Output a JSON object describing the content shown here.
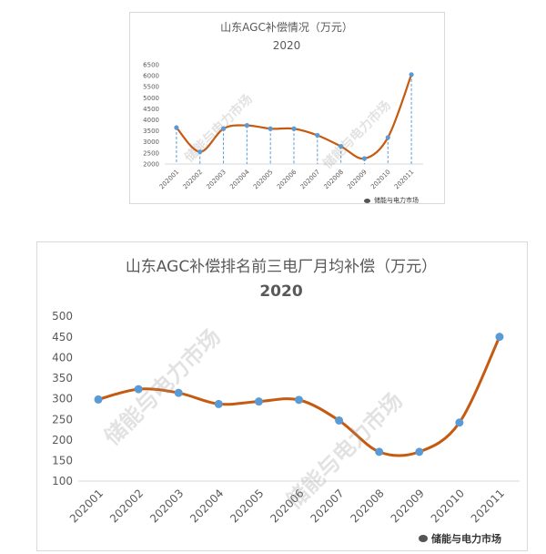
{
  "chart_data": [
    {
      "type": "line",
      "title": "山东AGC补偿情况（万元）",
      "subtitle": "2020",
      "categories": [
        "202001",
        "202002",
        "202003",
        "202004",
        "202005",
        "202006",
        "202007",
        "202008",
        "202009",
        "202010",
        "202011"
      ],
      "series": [
        {
          "values": [
            3650,
            2550,
            3600,
            3750,
            3600,
            3600,
            3300,
            2800,
            2250,
            3200,
            6050
          ]
        }
      ],
      "ylim": [
        2000,
        6500
      ],
      "yticks": [
        "2000",
        "2500",
        "3000",
        "3500",
        "4000",
        "4500",
        "5000",
        "5500",
        "6000",
        "6500"
      ],
      "smooth": true,
      "drop_lines": true,
      "grid": false,
      "line_color": "#c55a11",
      "marker_color": "#5b9bd5"
    },
    {
      "type": "line",
      "title": "山东AGC补偿排名前三电厂月均补偿（万元）",
      "subtitle": "2020",
      "categories": [
        "202001",
        "202002",
        "202003",
        "202004",
        "202005",
        "202006",
        "202007",
        "202008",
        "202009",
        "202010",
        "202011"
      ],
      "series": [
        {
          "values": [
            298,
            323,
            314,
            287,
            293,
            297,
            247,
            171,
            171,
            242,
            450
          ]
        }
      ],
      "ylim": [
        100,
        500
      ],
      "yticks": [
        "100",
        "150",
        "200",
        "250",
        "300",
        "350",
        "400",
        "450",
        "500"
      ],
      "smooth": true,
      "drop_lines": false,
      "grid": false,
      "line_color": "#c55a11",
      "marker_color": "#5b9bd5"
    }
  ],
  "watermark": {
    "text": "储能与电力市场",
    "brand": "储能与电力市场"
  }
}
